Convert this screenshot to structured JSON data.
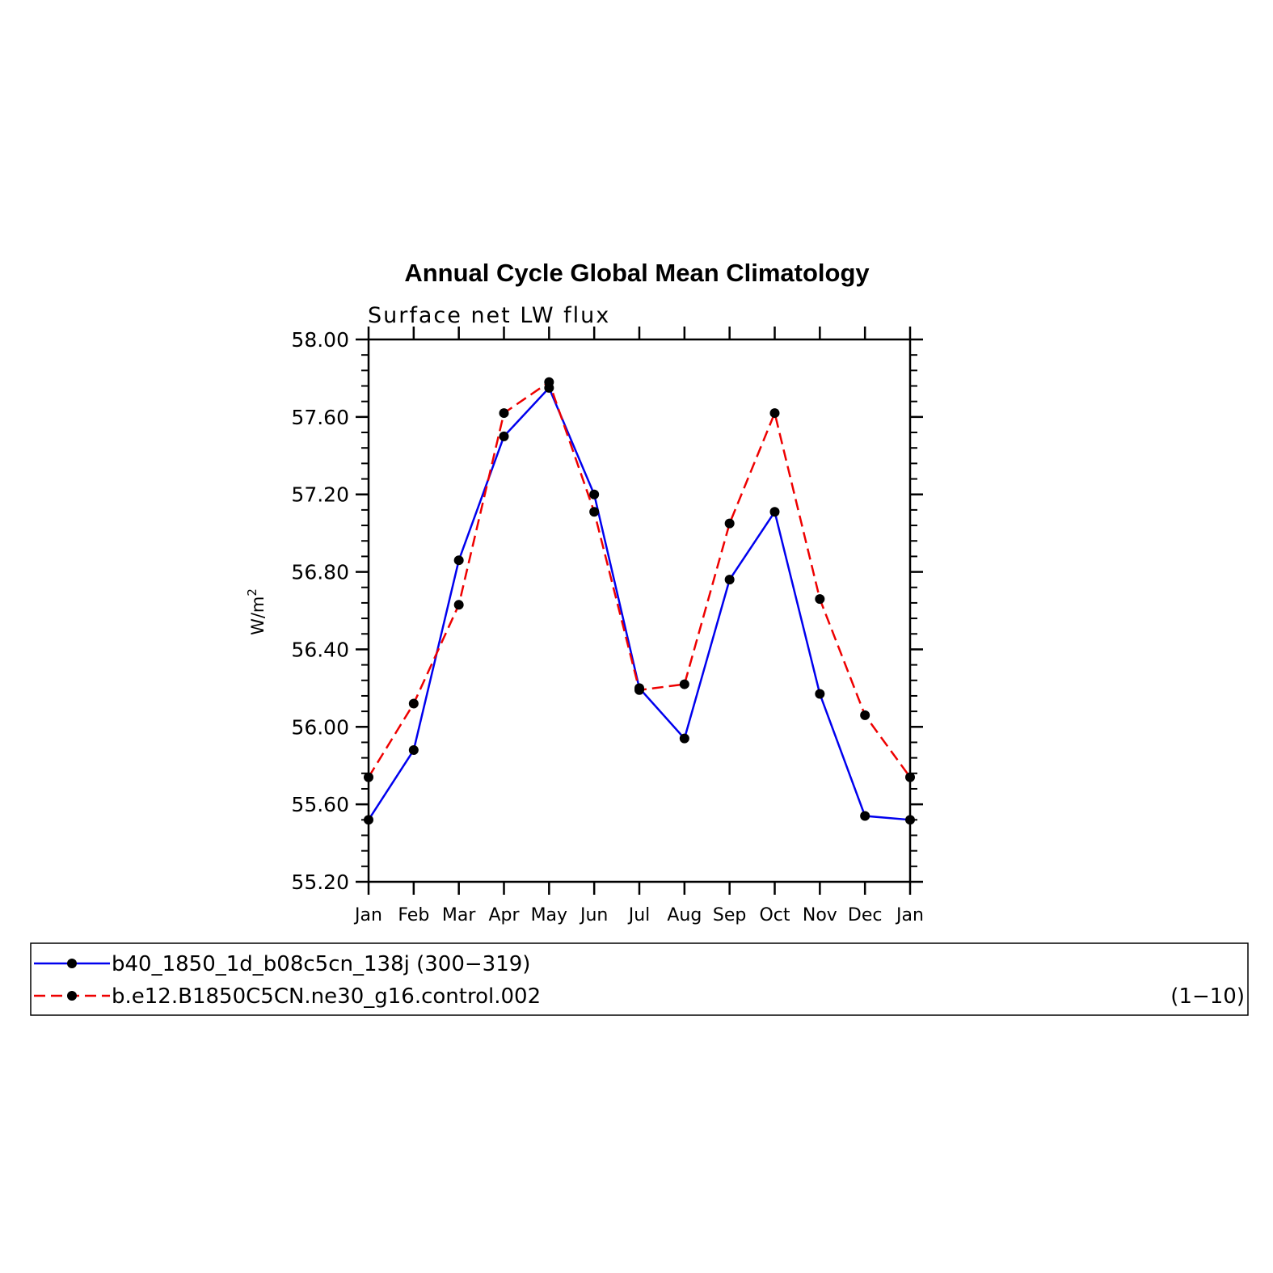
{
  "chart_data": {
    "type": "line",
    "title": "Annual Cycle Global Mean Climatology",
    "subtitle": "Surface net LW flux",
    "ylabel": "W/m",
    "ylabel_sup": "2",
    "xlabel": "",
    "categories": [
      "Jan",
      "Feb",
      "Mar",
      "Apr",
      "May",
      "Jun",
      "Jul",
      "Aug",
      "Sep",
      "Oct",
      "Nov",
      "Dec",
      "Jan"
    ],
    "ylim": [
      55.2,
      58.0
    ],
    "yticks": [
      55.2,
      55.6,
      56.0,
      56.4,
      56.8,
      57.2,
      57.6,
      58.0
    ],
    "ytick_labels": [
      "55.20",
      "55.60",
      "56.00",
      "56.40",
      "56.80",
      "57.20",
      "57.60",
      "58.00"
    ],
    "grid": false,
    "legend_placement": "bottom",
    "series": [
      {
        "name": "b40_1850_1d_b08c5cn_138j (300−319)",
        "years": "",
        "color": "#0000ee",
        "dash": "solid",
        "marker_color": "#000000",
        "values": [
          55.52,
          55.88,
          56.86,
          57.5,
          57.75,
          57.2,
          56.2,
          55.94,
          56.76,
          57.11,
          56.17,
          55.54,
          55.52
        ]
      },
      {
        "name": "b.e12.B1850C5CN.ne30_g16.control.002",
        "years": "(1−10)",
        "color": "#ee0000",
        "dash": "dashed",
        "marker_color": "#000000",
        "values": [
          55.74,
          56.12,
          56.63,
          57.62,
          57.78,
          57.11,
          56.19,
          56.22,
          57.05,
          57.62,
          56.66,
          56.06,
          55.74
        ]
      }
    ]
  }
}
